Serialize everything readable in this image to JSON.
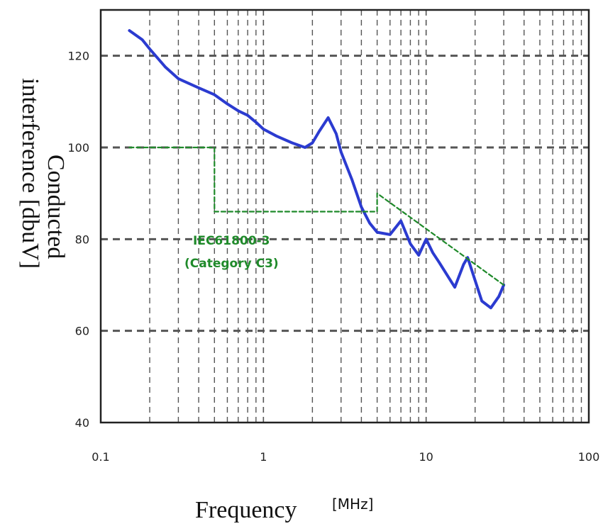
{
  "chart_data": {
    "type": "line",
    "title": "",
    "xlabel": "Frequency",
    "xunit": "[MHz]",
    "ylabel_line1": "Conducted",
    "ylabel_line2": "interference [dbuV]",
    "xscale": "log",
    "xlim": [
      0.1,
      100
    ],
    "ylim": [
      40,
      130
    ],
    "xticks": [
      0.1,
      1,
      10,
      100
    ],
    "xtick_labels": [
      "0.1",
      "1",
      "10",
      "100"
    ],
    "yticks": [
      40,
      60,
      80,
      100,
      120
    ],
    "ytick_labels": [
      "40",
      "60",
      "80",
      "100",
      "120"
    ],
    "grid": true,
    "colors": {
      "measured": "#2b3bd0",
      "limit": "#1f8a2a",
      "grid": "#555555"
    },
    "series": [
      {
        "label": "",
        "color": "#2b3bd0",
        "x": [
          0.15,
          0.18,
          0.2,
          0.25,
          0.3,
          0.4,
          0.5,
          0.6,
          0.7,
          0.8,
          0.9,
          1.0,
          1.2,
          1.5,
          1.8,
          2.0,
          2.2,
          2.5,
          2.8,
          3.0,
          3.5,
          4.0,
          4.5,
          5.0,
          6.0,
          7.0,
          8.0,
          9.0,
          10.0,
          11.0,
          12.0,
          15.0,
          17.0,
          18.0,
          20.0,
          22.0,
          25.0,
          28.0,
          30.0
        ],
        "y": [
          125.5,
          123.5,
          121.5,
          117.5,
          115.0,
          113.0,
          111.5,
          109.5,
          108.0,
          107.0,
          105.5,
          104.0,
          102.5,
          101.0,
          100.0,
          101.0,
          103.5,
          106.5,
          103.0,
          99.0,
          93.0,
          87.0,
          83.5,
          81.5,
          81.0,
          84.0,
          79.0,
          76.5,
          80.0,
          77.0,
          75.0,
          69.5,
          74.5,
          76.0,
          71.0,
          66.5,
          65.0,
          67.5,
          70.0
        ]
      },
      {
        "label": "IEC61800-3 (Category C3)",
        "color": "#1f8a2a",
        "dashed": true,
        "x": [
          0.15,
          0.5,
          0.5,
          5.0,
          5.0,
          30.0
        ],
        "y": [
          100,
          100,
          86,
          86,
          90,
          70
        ]
      }
    ],
    "annotations": [
      {
        "text_line1": "IEC61800-3",
        "text_line2": "(Category C3)",
        "x": 1.0,
        "y": 79
      }
    ]
  }
}
